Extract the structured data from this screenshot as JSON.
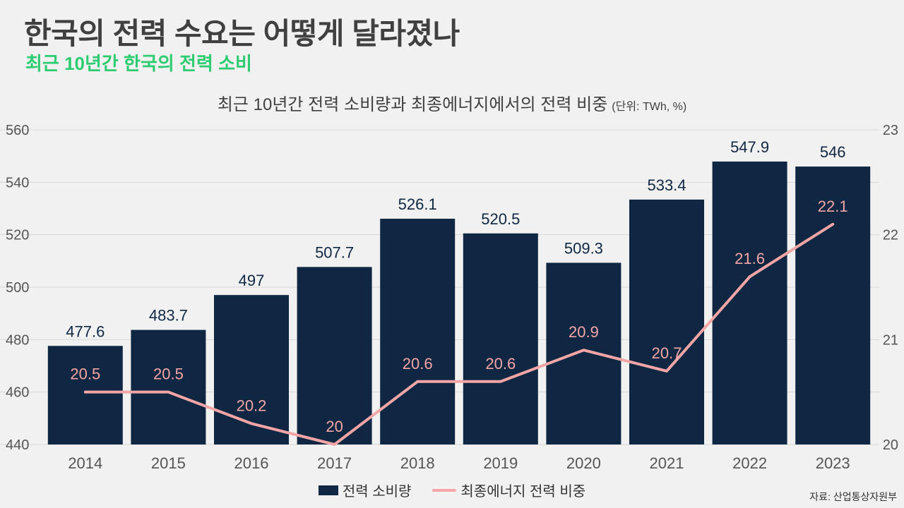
{
  "header": {
    "title": "한국의 전력 수요는 어떻게 달라졌나",
    "subtitle": "최근 10년간 한국의 전력 소비"
  },
  "chart_title": "최근 10년간 전력 소비량과 최종에너지에서의 전력 비중",
  "chart_unit": "(단위: TWh, %)",
  "source": "자료: 산업통상자원부",
  "colors": {
    "bar": "#0f2742",
    "line": "#f4a6a6",
    "subtitle": "#2ecc71"
  },
  "chart_data": {
    "type": "bar",
    "categories": [
      "2014",
      "2015",
      "2016",
      "2017",
      "2018",
      "2019",
      "2020",
      "2021",
      "2022",
      "2023"
    ],
    "series": [
      {
        "name": "전력 소비량",
        "type": "bar",
        "axis": "left",
        "values": [
          477.6,
          483.7,
          497,
          507.7,
          526.1,
          520.5,
          509.3,
          533.4,
          547.9,
          546
        ],
        "labels": [
          "477.6",
          "483.7",
          "497",
          "507.7",
          "526.1",
          "520.5",
          "509.3",
          "533.4",
          "547.9",
          "546"
        ]
      },
      {
        "name": "최종에너지 전력 비중",
        "type": "line",
        "axis": "right",
        "values": [
          20.5,
          20.5,
          20.2,
          20,
          20.6,
          20.6,
          20.9,
          20.7,
          21.6,
          22.1
        ],
        "labels": [
          "20.5",
          "20.5",
          "20.2",
          "20",
          "20.6",
          "20.6",
          "20.9",
          "20.7",
          "21.6",
          "22.1"
        ]
      }
    ],
    "ylim_left": [
      440,
      560
    ],
    "yticks_left": [
      "440",
      "460",
      "480",
      "500",
      "520",
      "540",
      "560"
    ],
    "ylim_right": [
      20,
      23
    ],
    "yticks_right": [
      "20",
      "21",
      "22",
      "23"
    ],
    "grid": true,
    "legend": "bottom-center"
  }
}
